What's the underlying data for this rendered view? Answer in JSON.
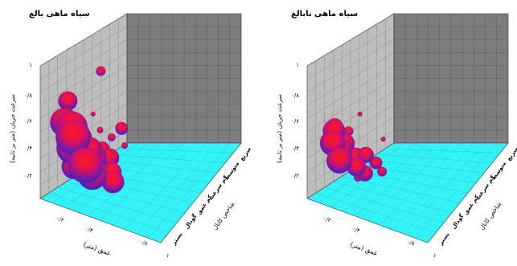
{
  "chart_data": [
    {
      "type": "scatter",
      "title": "سیاه ماهی بالغ",
      "ylabel": "سرعت جریان (متر بر ثانیه)",
      "xlabel": "عمق (متر)",
      "zlabel": "شاخص کانال",
      "y_ticks": [
        "۱",
        "۰/۸",
        "۰/۶",
        "۰/۴",
        "۰/۲"
      ],
      "x_ticks": [
        "۰/۲",
        "۰/۴",
        "۰/۸",
        "۱"
      ],
      "z_ticks": [
        "بستر",
        "گودال",
        "کم عمق",
        "کم سرعت",
        "متوسط",
        "سریع"
      ],
      "points": [
        {
          "x": 0.35,
          "y": 0.82,
          "z": 1.0,
          "r": 12
        },
        {
          "x": 0.52,
          "y": 0.98,
          "z": 3.5,
          "r": 6
        },
        {
          "x": 0.3,
          "y": 0.64,
          "z": 1.0,
          "r": 18
        },
        {
          "x": 0.33,
          "y": 0.58,
          "z": 1.6,
          "r": 20
        },
        {
          "x": 0.38,
          "y": 0.52,
          "z": 1.4,
          "r": 22
        },
        {
          "x": 0.42,
          "y": 0.46,
          "z": 1.0,
          "r": 20
        },
        {
          "x": 0.48,
          "y": 0.54,
          "z": 1.3,
          "r": 16
        },
        {
          "x": 0.55,
          "y": 0.58,
          "z": 1.0,
          "r": 12
        },
        {
          "x": 0.58,
          "y": 0.44,
          "z": 1.6,
          "r": 18
        },
        {
          "x": 0.62,
          "y": 0.36,
          "z": 1.0,
          "r": 22
        },
        {
          "x": 0.7,
          "y": 0.42,
          "z": 1.5,
          "r": 14
        },
        {
          "x": 0.72,
          "y": 0.3,
          "z": 1.0,
          "r": 18
        },
        {
          "x": 0.45,
          "y": 0.32,
          "z": 1.0,
          "r": 16
        },
        {
          "x": 0.8,
          "y": 0.5,
          "z": 1.5,
          "r": 10
        },
        {
          "x": 0.85,
          "y": 0.42,
          "z": 2.0,
          "r": 12
        },
        {
          "x": 0.82,
          "y": 0.28,
          "z": 2.5,
          "r": 12
        },
        {
          "x": 0.9,
          "y": 0.24,
          "z": 2.0,
          "r": 14
        },
        {
          "x": 0.9,
          "y": 0.62,
          "z": 3.0,
          "r": 8
        },
        {
          "x": 0.75,
          "y": 0.52,
          "z": 3.0,
          "r": 5
        },
        {
          "x": 0.68,
          "y": 0.6,
          "z": 2.2,
          "r": 4
        },
        {
          "x": 0.92,
          "y": 0.48,
          "z": 3.2,
          "r": 4
        },
        {
          "x": 0.6,
          "y": 0.72,
          "z": 2.0,
          "r": 3
        }
      ]
    },
    {
      "type": "scatter",
      "title": "سیاه ماهی نابالغ",
      "ylabel": "سرعت جریان (متر بر ثانیه)",
      "xlabel": "عمق (متر)",
      "zlabel": "شاخص کانال",
      "y_ticks": [
        "۱",
        "۰/۸",
        "۰/۶",
        "۰/۴",
        "۰/۲"
      ],
      "x_ticks": [
        "۰/۲",
        "۰/۴",
        "۰/۸",
        "۱"
      ],
      "z_ticks": [
        "بستر",
        "گودال",
        "کم عمق",
        "کم سرعت",
        "متوسط",
        "سریع"
      ],
      "points": [
        {
          "x": 0.35,
          "y": 0.62,
          "z": 1.0,
          "r": 10
        },
        {
          "x": 0.3,
          "y": 0.56,
          "z": 1.3,
          "r": 14
        },
        {
          "x": 0.32,
          "y": 0.48,
          "z": 1.0,
          "r": 16
        },
        {
          "x": 0.38,
          "y": 0.42,
          "z": 1.5,
          "r": 14
        },
        {
          "x": 0.42,
          "y": 0.36,
          "z": 1.0,
          "r": 16
        },
        {
          "x": 0.48,
          "y": 0.5,
          "z": 1.2,
          "r": 12
        },
        {
          "x": 0.52,
          "y": 0.4,
          "z": 1.6,
          "r": 10
        },
        {
          "x": 0.56,
          "y": 0.62,
          "z": 1.0,
          "r": 6
        },
        {
          "x": 0.62,
          "y": 0.42,
          "z": 1.4,
          "r": 10
        },
        {
          "x": 0.68,
          "y": 0.36,
          "z": 1.0,
          "r": 12
        },
        {
          "x": 0.74,
          "y": 0.44,
          "z": 1.6,
          "r": 10
        },
        {
          "x": 0.78,
          "y": 0.32,
          "z": 1.2,
          "r": 10
        },
        {
          "x": 0.84,
          "y": 0.38,
          "z": 2.0,
          "r": 8
        },
        {
          "x": 0.88,
          "y": 0.3,
          "z": 2.4,
          "r": 6
        },
        {
          "x": 0.7,
          "y": 0.28,
          "z": 1.0,
          "r": 5
        },
        {
          "x": 0.6,
          "y": 0.72,
          "z": 2.0,
          "r": 3
        },
        {
          "x": 0.82,
          "y": 0.52,
          "z": 3.0,
          "r": 3
        }
      ]
    }
  ]
}
